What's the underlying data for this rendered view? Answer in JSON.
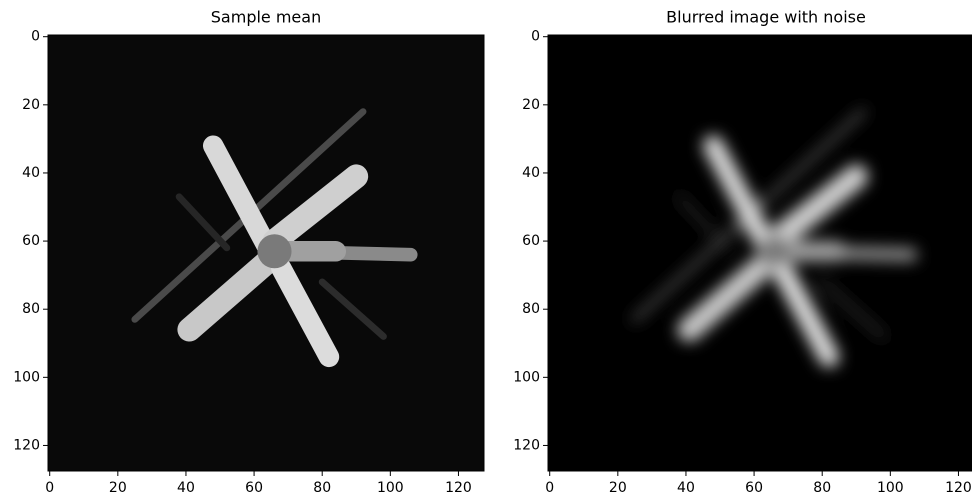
{
  "chart_data": [
    {
      "type": "image",
      "title": "Sample mean",
      "xlim": [
        -0.5,
        127.5
      ],
      "ylim": [
        127.5,
        -0.5
      ],
      "xticks": [
        0,
        20,
        40,
        60,
        80,
        100,
        120
      ],
      "yticks": [
        0,
        20,
        40,
        60,
        80,
        100,
        120
      ]
    },
    {
      "type": "image",
      "title": "Blurred image with noise",
      "xlim": [
        -0.5,
        127.5
      ],
      "ylim": [
        127.5,
        -0.5
      ],
      "xticks": [
        0,
        20,
        40,
        60,
        80,
        100,
        120
      ],
      "yticks": [
        0,
        20,
        40,
        60,
        80,
        100,
        120
      ]
    }
  ]
}
